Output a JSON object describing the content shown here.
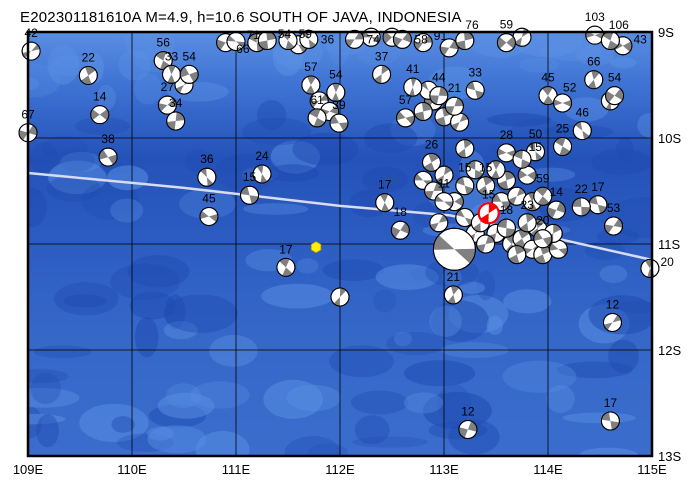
{
  "title": "E202301181610A  M=4.9, h=10.6 SOUTH OF JAVA, INDONESIA",
  "map": {
    "lon_range": [
      109,
      115
    ],
    "lat_range": [
      -13,
      -9
    ],
    "lon_ticks": [
      {
        "v": 109,
        "label": "109E"
      },
      {
        "v": 110,
        "label": "110E"
      },
      {
        "v": 111,
        "label": "111E"
      },
      {
        "v": 112,
        "label": "112E"
      },
      {
        "v": 113,
        "label": "113E"
      },
      {
        "v": 114,
        "label": "114E"
      },
      {
        "v": 115,
        "label": "115E"
      }
    ],
    "lat_ticks": [
      {
        "v": -9,
        "label": "9S"
      },
      {
        "v": -10,
        "label": "10S"
      },
      {
        "v": -11,
        "label": "11S"
      },
      {
        "v": -12,
        "label": "12S"
      },
      {
        "v": -13,
        "label": "13S"
      }
    ],
    "grid": true,
    "colors": {
      "ocean": "#2f63c8",
      "ocean_deep": "#1d45a8",
      "shelf": "#4f86de",
      "trench_line": "#d8dcf0",
      "mechanism_fill": "#808080",
      "main_event": "#ff0000",
      "station": "#ffee00"
    },
    "trench": [
      [
        109.0,
        -10.33
      ],
      [
        110.5,
        -10.47
      ],
      [
        112.0,
        -10.64
      ],
      [
        113.06,
        -10.73
      ],
      [
        114.0,
        -10.93
      ],
      [
        115.0,
        -11.15
      ]
    ],
    "station_marker": {
      "lon": 111.77,
      "lat": -11.03,
      "icon": "yellow-hexagon"
    },
    "main_event": {
      "lon": 113.43,
      "lat": -10.71,
      "depth": "15"
    },
    "events": [
      {
        "lon": 109.03,
        "lat": -9.18,
        "depth": "42"
      },
      {
        "lon": 109.0,
        "lat": -9.95,
        "depth": "67"
      },
      {
        "lon": 109.77,
        "lat": -10.18,
        "depth": "38"
      },
      {
        "lon": 109.69,
        "lat": -9.78,
        "depth": "14"
      },
      {
        "lon": 109.58,
        "lat": -9.41,
        "depth": "22"
      },
      {
        "lon": 110.3,
        "lat": -9.27,
        "depth": "56"
      },
      {
        "lon": 110.38,
        "lat": -9.4,
        "depth": "33"
      },
      {
        "lon": 110.55,
        "lat": -9.4,
        "depth": "54"
      },
      {
        "lon": 110.34,
        "lat": -9.69,
        "depth": "27"
      },
      {
        "lon": 110.42,
        "lat": -9.84,
        "depth": "34"
      },
      {
        "lon": 110.72,
        "lat": -10.37,
        "depth": "36"
      },
      {
        "lon": 111.25,
        "lat": -10.34,
        "depth": "24"
      },
      {
        "lon": 110.74,
        "lat": -10.74,
        "depth": "45"
      },
      {
        "lon": 111.13,
        "lat": -10.54,
        "depth": "15"
      },
      {
        "lon": 111.48,
        "lat": -11.22,
        "depth": "17"
      },
      {
        "lon": 110.9,
        "lat": -9.1,
        "depth": "66"
      },
      {
        "lon": 111.0,
        "lat": -9.09,
        "depth": "71"
      },
      {
        "lon": 111.3,
        "lat": -9.08,
        "depth": "54"
      },
      {
        "lon": 111.5,
        "lat": -9.08,
        "depth": "59"
      },
      {
        "lon": 111.7,
        "lat": -9.07,
        "depth": "36"
      },
      {
        "lon": 111.72,
        "lat": -9.5,
        "depth": "57"
      },
      {
        "lon": 111.96,
        "lat": -9.57,
        "depth": "54"
      },
      {
        "lon": 111.78,
        "lat": -9.81,
        "depth": "61"
      },
      {
        "lon": 111.99,
        "lat": -9.86,
        "depth": "39"
      },
      {
        "lon": 112.14,
        "lat": -9.07,
        "depth": "74"
      },
      {
        "lon": 112.4,
        "lat": -9.4,
        "depth": "37"
      },
      {
        "lon": 112.6,
        "lat": -9.07,
        "depth": "58"
      },
      {
        "lon": 112.8,
        "lat": -9.1,
        "depth": "91"
      },
      {
        "lon": 112.7,
        "lat": -9.52,
        "depth": "41"
      },
      {
        "lon": 112.63,
        "lat": -9.81,
        "depth": "57"
      },
      {
        "lon": 112.95,
        "lat": -9.6,
        "depth": "44"
      },
      {
        "lon": 113.1,
        "lat": -9.7,
        "depth": "21"
      },
      {
        "lon": 113.3,
        "lat": -9.55,
        "depth": "33"
      },
      {
        "lon": 113.2,
        "lat": -9.08,
        "depth": "76"
      },
      {
        "lon": 113.6,
        "lat": -9.1,
        "depth": "59"
      },
      {
        "lon": 112.88,
        "lat": -10.23,
        "depth": "26"
      },
      {
        "lon": 112.43,
        "lat": -10.61,
        "depth": "17"
      },
      {
        "lon": 112.58,
        "lat": -10.87,
        "depth": "18"
      },
      {
        "lon": 112.0,
        "lat": -11.5,
        "depth": ""
      },
      {
        "lon": 113.09,
        "lat": -11.48,
        "depth": "21"
      },
      {
        "lon": 113.23,
        "lat": -12.75,
        "depth": "12"
      },
      {
        "lon": 114.62,
        "lat": -11.74,
        "depth": "12"
      },
      {
        "lon": 114.6,
        "lat": -12.67,
        "depth": "17"
      },
      {
        "lon": 114.98,
        "lat": -11.23,
        "depth": "20"
      },
      {
        "lon": 114.63,
        "lat": -10.83,
        "depth": "53"
      },
      {
        "lon": 114.48,
        "lat": -10.63,
        "depth": "17"
      },
      {
        "lon": 114.32,
        "lat": -10.65,
        "depth": "22"
      },
      {
        "lon": 114.08,
        "lat": -10.68,
        "depth": "14"
      },
      {
        "lon": 113.95,
        "lat": -10.55,
        "depth": "59"
      },
      {
        "lon": 113.88,
        "lat": -10.13,
        "depth": "50"
      },
      {
        "lon": 114.14,
        "lat": -10.08,
        "depth": "25"
      },
      {
        "lon": 114.33,
        "lat": -9.93,
        "depth": "46"
      },
      {
        "lon": 114.0,
        "lat": -9.6,
        "depth": "45"
      },
      {
        "lon": 114.14,
        "lat": -9.67,
        "depth": "52"
      },
      {
        "lon": 114.44,
        "lat": -9.45,
        "depth": "66"
      },
      {
        "lon": 114.64,
        "lat": -9.6,
        "depth": "54"
      },
      {
        "lon": 114.72,
        "lat": -9.13,
        "depth": "43"
      },
      {
        "lon": 114.45,
        "lat": -9.03,
        "depth": "103"
      },
      {
        "lon": 114.6,
        "lat": -9.08,
        "depth": "106"
      },
      {
        "lon": 113.6,
        "lat": -10.14,
        "depth": "28"
      },
      {
        "lon": 113.75,
        "lat": -10.2,
        "depth": "15"
      },
      {
        "lon": 113.0,
        "lat": -10.6,
        "depth": "11"
      },
      {
        "lon": 113.2,
        "lat": -10.45,
        "depth": "15"
      },
      {
        "lon": 113.4,
        "lat": -10.45,
        "depth": "15"
      },
      {
        "lon": 113.8,
        "lat": -10.8,
        "depth": "23"
      },
      {
        "lon": 113.95,
        "lat": -10.95,
        "depth": "20"
      },
      {
        "lon": 113.6,
        "lat": -10.85,
        "depth": "18"
      }
    ],
    "cluster_events": [
      [
        112.8,
        -10.4
      ],
      [
        112.9,
        -10.5
      ],
      [
        113.1,
        -10.6
      ],
      [
        113.2,
        -10.75
      ],
      [
        113.3,
        -10.9
      ],
      [
        113.15,
        -10.95
      ],
      [
        113.35,
        -10.8
      ],
      [
        113.5,
        -10.9
      ],
      [
        113.65,
        -11.0
      ],
      [
        113.75,
        -10.95
      ],
      [
        113.85,
        -11.05
      ],
      [
        113.95,
        -11.1
      ],
      [
        113.7,
        -11.1
      ],
      [
        113.55,
        -10.6
      ],
      [
        113.6,
        -10.4
      ],
      [
        113.7,
        -10.55
      ],
      [
        113.8,
        -10.35
      ],
      [
        113.5,
        -10.3
      ],
      [
        113.3,
        -10.3
      ],
      [
        113.0,
        -10.35
      ],
      [
        112.95,
        -10.8
      ],
      [
        113.4,
        -11.0
      ],
      [
        114.1,
        -11.05
      ],
      [
        113.9,
        -10.85
      ],
      [
        113.85,
        -10.6
      ],
      [
        114.05,
        -10.9
      ],
      [
        112.9,
        -9.65
      ],
      [
        113.0,
        -9.8
      ],
      [
        113.15,
        -9.85
      ],
      [
        112.8,
        -9.75
      ],
      [
        113.2,
        -10.1
      ],
      [
        112.85,
        -9.55
      ],
      [
        111.8,
        -9.65
      ],
      [
        111.9,
        -9.75
      ],
      [
        110.5,
        -9.5
      ],
      [
        111.6,
        -9.12
      ],
      [
        114.6,
        -9.65
      ],
      [
        113.75,
        -9.05
      ],
      [
        112.3,
        -9.05
      ],
      [
        111.2,
        -9.1
      ],
      [
        112.5,
        -9.05
      ],
      [
        113.05,
        -9.15
      ]
    ],
    "big_event": {
      "lon": 113.1,
      "lat": -11.05,
      "depth": ""
    }
  }
}
